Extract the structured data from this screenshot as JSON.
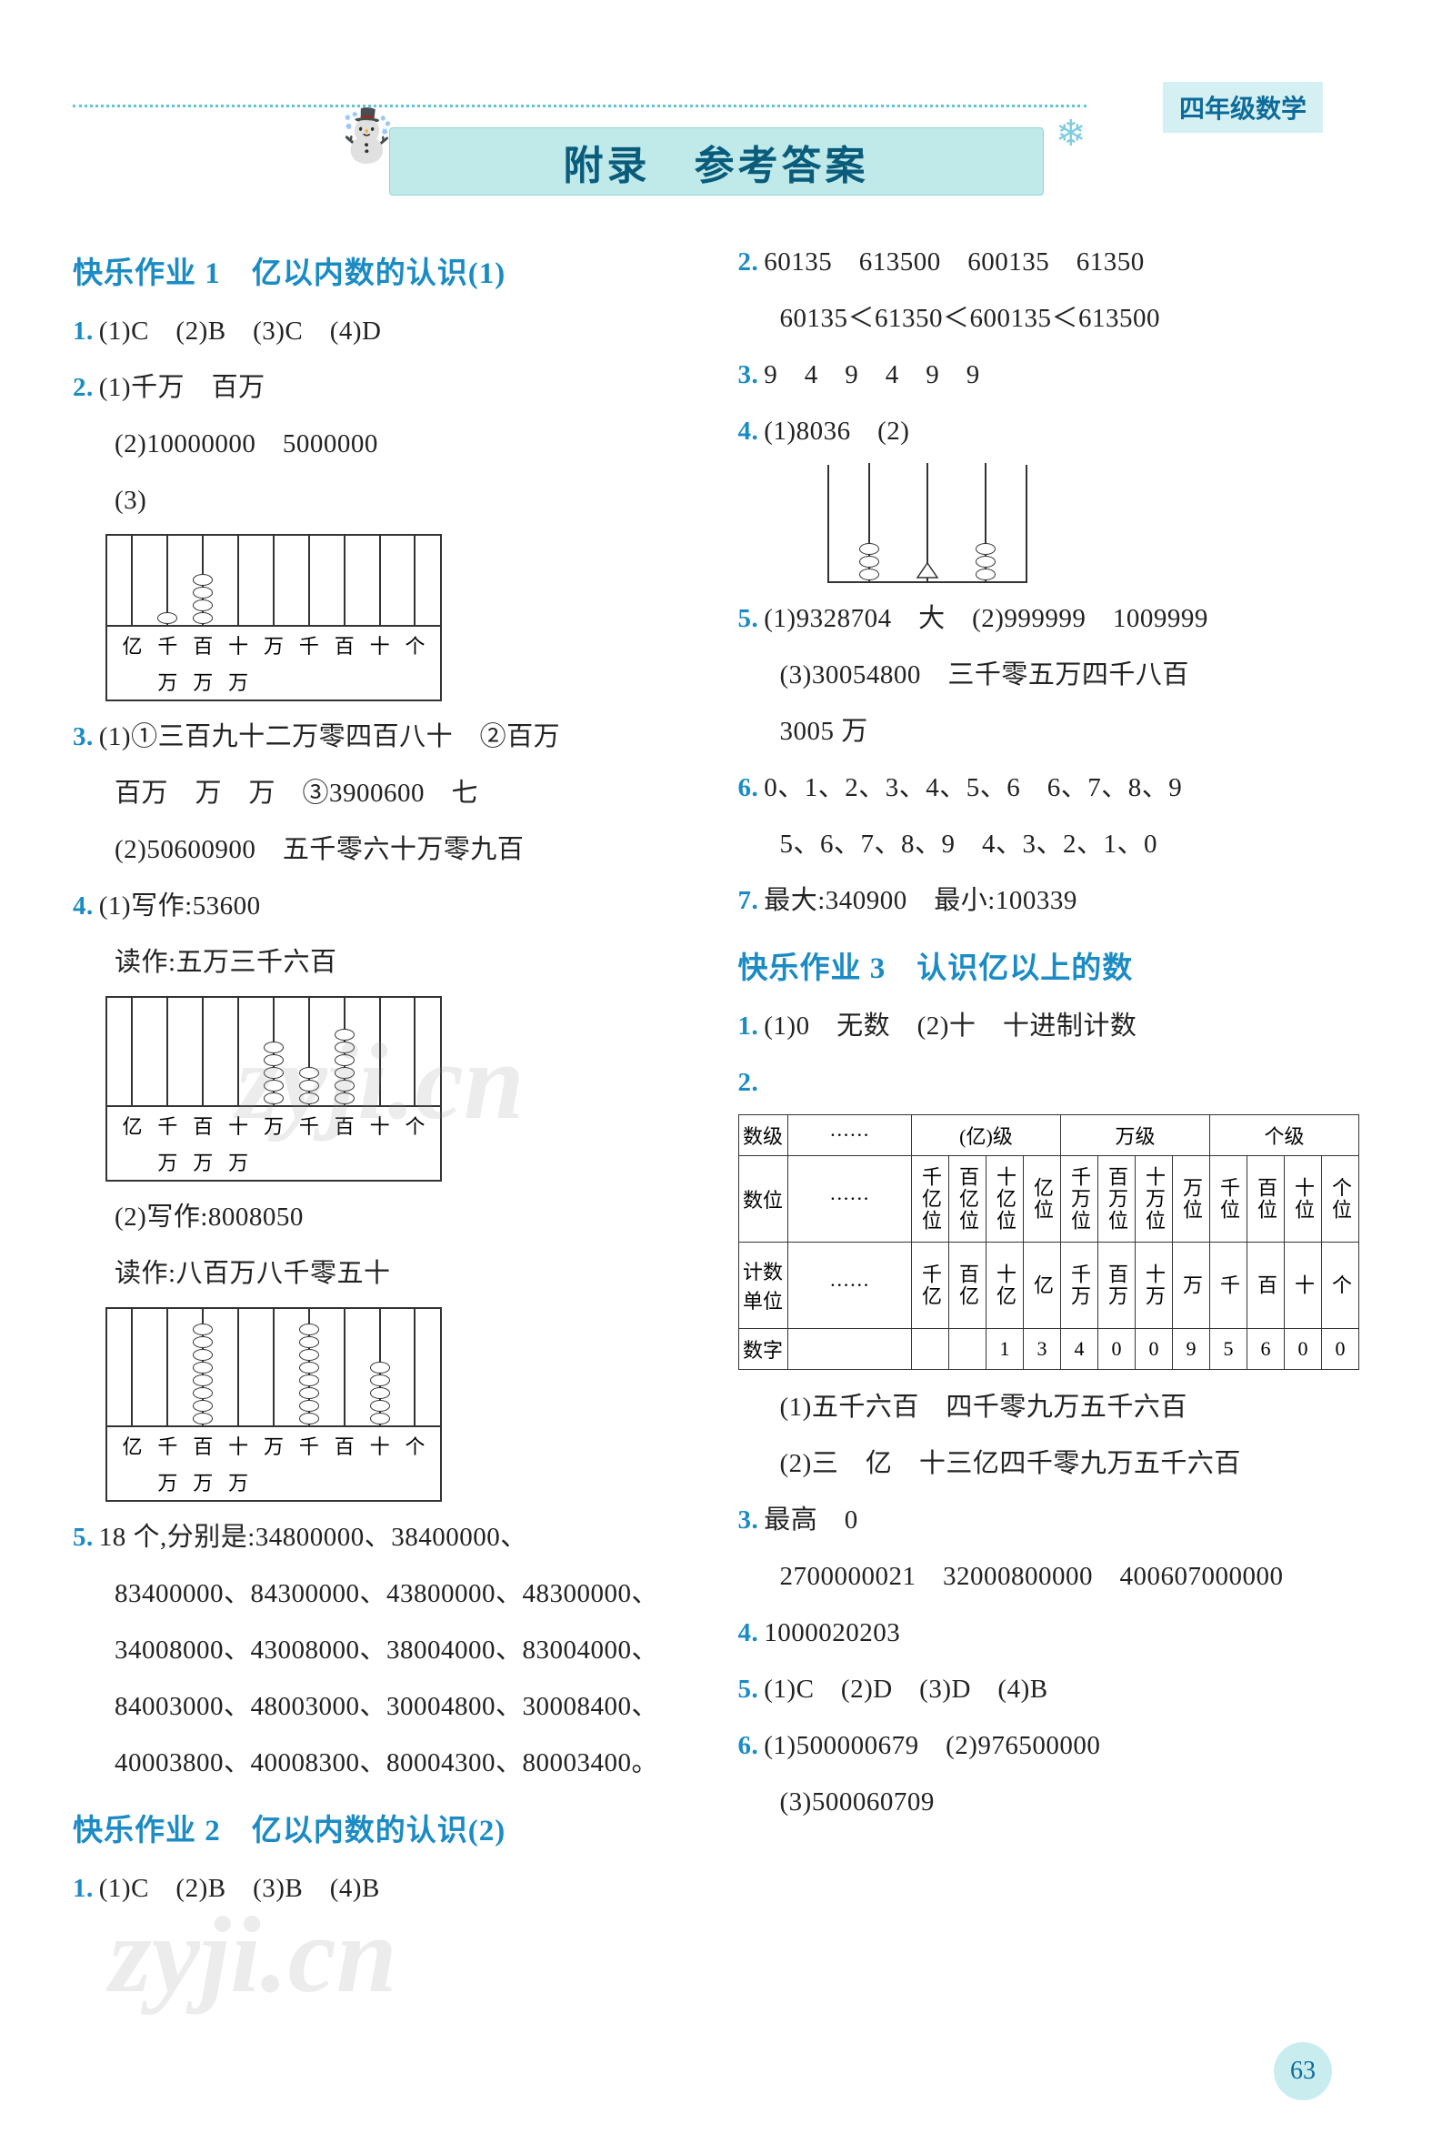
{
  "header_label": "四年级数学",
  "title": "附录　参考答案",
  "page_number": "63",
  "watermark": "zyji.cn",
  "colors": {
    "accent": "#1a8bc4",
    "banner_bg": "#c0e9ea",
    "banner_text": "#0a5c7b",
    "header_bg": "#d4f0f2",
    "dot": "#5bc6d6"
  },
  "left": {
    "s1": {
      "title": "快乐作业 1　亿以内数的认识(1)",
      "l1": "(1)C　(2)B　(3)C　(4)D",
      "l2": "(1)千万　百万",
      "l2b": "(2)10000000　5000000",
      "l2c": "(3)",
      "abacus1_labels_top": [
        "亿",
        "千",
        "百",
        "十",
        "万",
        "千",
        "百",
        "十",
        "个"
      ],
      "abacus1_labels_bot": [
        "",
        "万",
        "万",
        "万",
        "",
        "",
        "",
        "",
        ""
      ],
      "l3": "(1)①三百九十二万零四百八十　②百万",
      "l3b": "百万　万　万　③3900600　七",
      "l3c": "(2)50600900　五千零六十万零九百",
      "l4": "(1)写作:53600",
      "l4b": "读作:五万三千六百",
      "l4c": "(2)写作:8008050",
      "l4d": "读作:八百万八千零五十",
      "l5": "18 个,分别是:34800000、38400000、",
      "l5b": "83400000、84300000、43800000、48300000、",
      "l5c": "34008000、43008000、38004000、83004000、",
      "l5d": "84003000、48003000、30004800、30008400、",
      "l5e": "40003800、40008300、80004300、80003400。"
    },
    "s2": {
      "title": "快乐作业 2　亿以内数的认识(2)",
      "l1": "(1)C　(2)B　(3)B　(4)B"
    }
  },
  "right": {
    "l2": "60135　613500　600135　61350",
    "l2b": "60135＜61350＜600135＜613500",
    "l3": "9　4　9　4　9　9",
    "l4": "(1)8036　(2)",
    "abacus2_beads": [
      3,
      1,
      3
    ],
    "l5": "(1)9328704　大　(2)999999　1009999",
    "l5b": "(3)30054800　三千零五万四千八百",
    "l5c": "3005 万",
    "l6": "0、1、2、3、4、5、6　6、7、8、9",
    "l6b": "5、6、7、8、9　4、3、2、1、0",
    "l7": "最大:340900　最小:100339",
    "s3": {
      "title": "快乐作业 3　认识亿以上的数",
      "l1": "(1)0　无数　(2)十　十进制计数",
      "table": {
        "row1": [
          "数级",
          "······",
          "(亿)级",
          "万级",
          "个级"
        ],
        "row2_label": "数位",
        "row2_dots": "······",
        "row2_cells": [
          "千亿位",
          "百亿位",
          "十亿位",
          "亿位",
          "千万位",
          "百万位",
          "十万位",
          "万位",
          "千位",
          "百位",
          "十位",
          "个位"
        ],
        "row3_label": "计数单位",
        "row3_dots": "······",
        "row3_cells": [
          "千亿",
          "百亿",
          "十亿",
          "亿",
          "千万",
          "百万",
          "十万",
          "万",
          "千",
          "百",
          "十",
          "个"
        ],
        "row4_label": "数字",
        "row4_cells": [
          "",
          "",
          "1",
          "3",
          "4",
          "0",
          "0",
          "9",
          "5",
          "6",
          "0",
          "0"
        ]
      },
      "l2c": "(1)五千六百　四千零九万五千六百",
      "l2d": "(2)三　亿　十三亿四千零九万五千六百",
      "l3": "最高　0",
      "l3b": "2700000021　32000800000　400607000000",
      "l4": "1000020203",
      "l5": "(1)C　(2)D　(3)D　(4)B",
      "l6": "(1)500000679　(2)976500000",
      "l6b": "(3)500060709"
    }
  }
}
